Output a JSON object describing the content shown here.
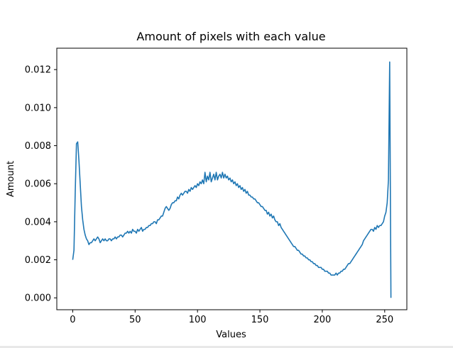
{
  "chart_data": {
    "type": "line",
    "title": "Amount of pixels with each value",
    "xlabel": "Values",
    "ylabel": "Amount",
    "xlim": [
      -12.75,
      267.75
    ],
    "ylim": [
      -0.000625,
      0.013125
    ],
    "xticks": [
      "0",
      "50",
      "100",
      "150",
      "200",
      "250"
    ],
    "yticks": [
      "0.000",
      "0.002",
      "0.004",
      "0.006",
      "0.008",
      "0.010",
      "0.012"
    ],
    "grid": false,
    "series": [
      {
        "color": "#1f77b4",
        "x": [
          0,
          1,
          2,
          3,
          4,
          5,
          6,
          7,
          8,
          9,
          10,
          11,
          12,
          13,
          14,
          15,
          16,
          17,
          18,
          19,
          20,
          21,
          22,
          23,
          24,
          25,
          26,
          27,
          28,
          29,
          30,
          31,
          32,
          33,
          34,
          35,
          36,
          37,
          38,
          39,
          40,
          41,
          42,
          43,
          44,
          45,
          46,
          47,
          48,
          49,
          50,
          51,
          52,
          53,
          54,
          55,
          56,
          57,
          58,
          59,
          60,
          61,
          62,
          63,
          64,
          65,
          66,
          67,
          68,
          69,
          70,
          71,
          72,
          73,
          74,
          75,
          76,
          77,
          78,
          79,
          80,
          81,
          82,
          83,
          84,
          85,
          86,
          87,
          88,
          89,
          90,
          91,
          92,
          93,
          94,
          95,
          96,
          97,
          98,
          99,
          100,
          101,
          102,
          103,
          104,
          105,
          106,
          107,
          108,
          109,
          110,
          111,
          112,
          113,
          114,
          115,
          116,
          117,
          118,
          119,
          120,
          121,
          122,
          123,
          124,
          125,
          126,
          127,
          128,
          129,
          130,
          131,
          132,
          133,
          134,
          135,
          136,
          137,
          138,
          139,
          140,
          141,
          142,
          143,
          144,
          145,
          146,
          147,
          148,
          149,
          150,
          151,
          152,
          153,
          154,
          155,
          156,
          157,
          158,
          159,
          160,
          161,
          162,
          163,
          164,
          165,
          166,
          167,
          168,
          169,
          170,
          171,
          172,
          173,
          174,
          175,
          176,
          177,
          178,
          179,
          180,
          181,
          182,
          183,
          184,
          185,
          186,
          187,
          188,
          189,
          190,
          191,
          192,
          193,
          194,
          195,
          196,
          197,
          198,
          199,
          200,
          201,
          202,
          203,
          204,
          205,
          206,
          207,
          208,
          209,
          210,
          211,
          212,
          213,
          214,
          215,
          216,
          217,
          218,
          219,
          220,
          221,
          222,
          223,
          224,
          225,
          226,
          227,
          228,
          229,
          230,
          231,
          232,
          233,
          234,
          235,
          236,
          237,
          238,
          239,
          240,
          241,
          242,
          243,
          244,
          245,
          246,
          247,
          248,
          249,
          250,
          251,
          252,
          253,
          254,
          255
        ],
        "y": [
          0.002,
          0.0025,
          0.0055,
          0.0081,
          0.0082,
          0.0072,
          0.006,
          0.0048,
          0.0041,
          0.0036,
          0.0033,
          0.0031,
          0.003,
          0.0028,
          0.0029,
          0.0029,
          0.003,
          0.0031,
          0.003,
          0.0031,
          0.0032,
          0.0031,
          0.0029,
          0.003,
          0.0031,
          0.003,
          0.0031,
          0.003,
          0.003,
          0.0031,
          0.0031,
          0.003,
          0.0031,
          0.0031,
          0.0032,
          0.0031,
          0.0032,
          0.0032,
          0.0033,
          0.0033,
          0.0032,
          0.0033,
          0.0034,
          0.0034,
          0.0035,
          0.0034,
          0.0035,
          0.0034,
          0.0036,
          0.0035,
          0.0035,
          0.0034,
          0.0036,
          0.0035,
          0.0036,
          0.0037,
          0.0035,
          0.0036,
          0.0036,
          0.0037,
          0.0037,
          0.0038,
          0.0038,
          0.0039,
          0.0039,
          0.004,
          0.004,
          0.0039,
          0.0041,
          0.0041,
          0.0042,
          0.0043,
          0.0043,
          0.0045,
          0.0047,
          0.0048,
          0.0047,
          0.0046,
          0.0047,
          0.0049,
          0.005,
          0.005,
          0.0051,
          0.0051,
          0.0053,
          0.0052,
          0.0054,
          0.0055,
          0.0054,
          0.0055,
          0.0056,
          0.0056,
          0.0055,
          0.0057,
          0.0056,
          0.0058,
          0.0057,
          0.0058,
          0.0059,
          0.0058,
          0.006,
          0.0059,
          0.0061,
          0.006,
          0.0062,
          0.006,
          0.0066,
          0.0061,
          0.0064,
          0.0062,
          0.0066,
          0.0061,
          0.0063,
          0.0065,
          0.0062,
          0.0066,
          0.0062,
          0.0064,
          0.0065,
          0.0063,
          0.0066,
          0.0063,
          0.0065,
          0.0063,
          0.0064,
          0.0062,
          0.0063,
          0.0061,
          0.0062,
          0.006,
          0.0061,
          0.0059,
          0.006,
          0.0058,
          0.0059,
          0.0057,
          0.0058,
          0.0056,
          0.0057,
          0.0055,
          0.0056,
          0.0054,
          0.0054,
          0.0053,
          0.0053,
          0.0052,
          0.0052,
          0.0051,
          0.005,
          0.005,
          0.0049,
          0.0048,
          0.0048,
          0.0047,
          0.0046,
          0.0046,
          0.0044,
          0.0045,
          0.0043,
          0.0044,
          0.0042,
          0.0043,
          0.0041,
          0.004,
          0.004,
          0.0038,
          0.0039,
          0.0037,
          0.0036,
          0.0035,
          0.0034,
          0.0033,
          0.0032,
          0.0031,
          0.003,
          0.0029,
          0.0028,
          0.0027,
          0.0027,
          0.0026,
          0.0025,
          0.0025,
          0.0024,
          0.0023,
          0.0023,
          0.0022,
          0.0022,
          0.0021,
          0.0021,
          0.002,
          0.002,
          0.0019,
          0.0019,
          0.0018,
          0.0018,
          0.0017,
          0.0017,
          0.0016,
          0.0016,
          0.0016,
          0.0015,
          0.0015,
          0.0014,
          0.0014,
          0.0014,
          0.0013,
          0.0013,
          0.0012,
          0.0012,
          0.0012,
          0.0012,
          0.0013,
          0.0012,
          0.0013,
          0.0013,
          0.0014,
          0.0014,
          0.0015,
          0.0015,
          0.0016,
          0.0017,
          0.0018,
          0.0018,
          0.0019,
          0.002,
          0.0021,
          0.0022,
          0.0023,
          0.0024,
          0.0025,
          0.0026,
          0.0027,
          0.0028,
          0.003,
          0.0031,
          0.0032,
          0.0033,
          0.0034,
          0.0035,
          0.0036,
          0.0036,
          0.0035,
          0.0037,
          0.0036,
          0.0038,
          0.0037,
          0.0038,
          0.0038,
          0.0039,
          0.004,
          0.0043,
          0.0045,
          0.005,
          0.0062,
          0.0124,
          0.0
        ]
      }
    ]
  }
}
